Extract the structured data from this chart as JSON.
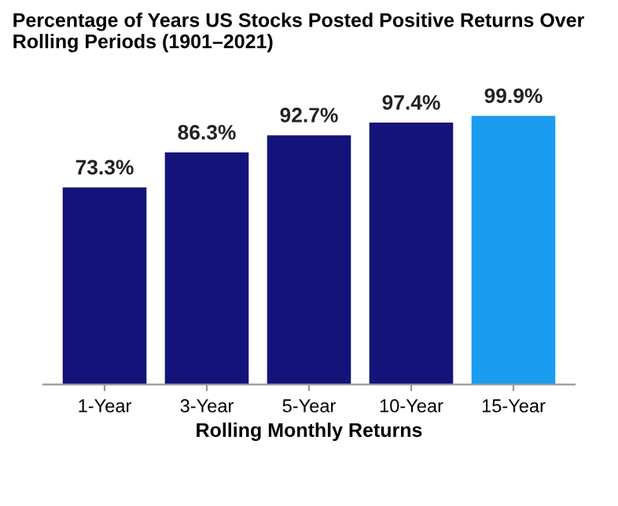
{
  "chart_data": {
    "type": "bar",
    "title": "Percentage of Years US Stocks Posted Positive Returns Over Rolling Periods (1901–2021)",
    "xlabel": "Rolling Monthly Returns",
    "categories": [
      "1-Year",
      "3-Year",
      "5-Year",
      "10-Year",
      "15-Year"
    ],
    "values": [
      73.3,
      86.3,
      92.7,
      97.4,
      99.9
    ],
    "value_labels": [
      "73.3%",
      "86.3%",
      "92.7%",
      "97.4%",
      "99.9%"
    ],
    "colors": [
      "#13137a",
      "#13137a",
      "#13137a",
      "#13137a",
      "#1a9cf0"
    ],
    "tick_labels": "x",
    "grid": false,
    "legend": false
  }
}
